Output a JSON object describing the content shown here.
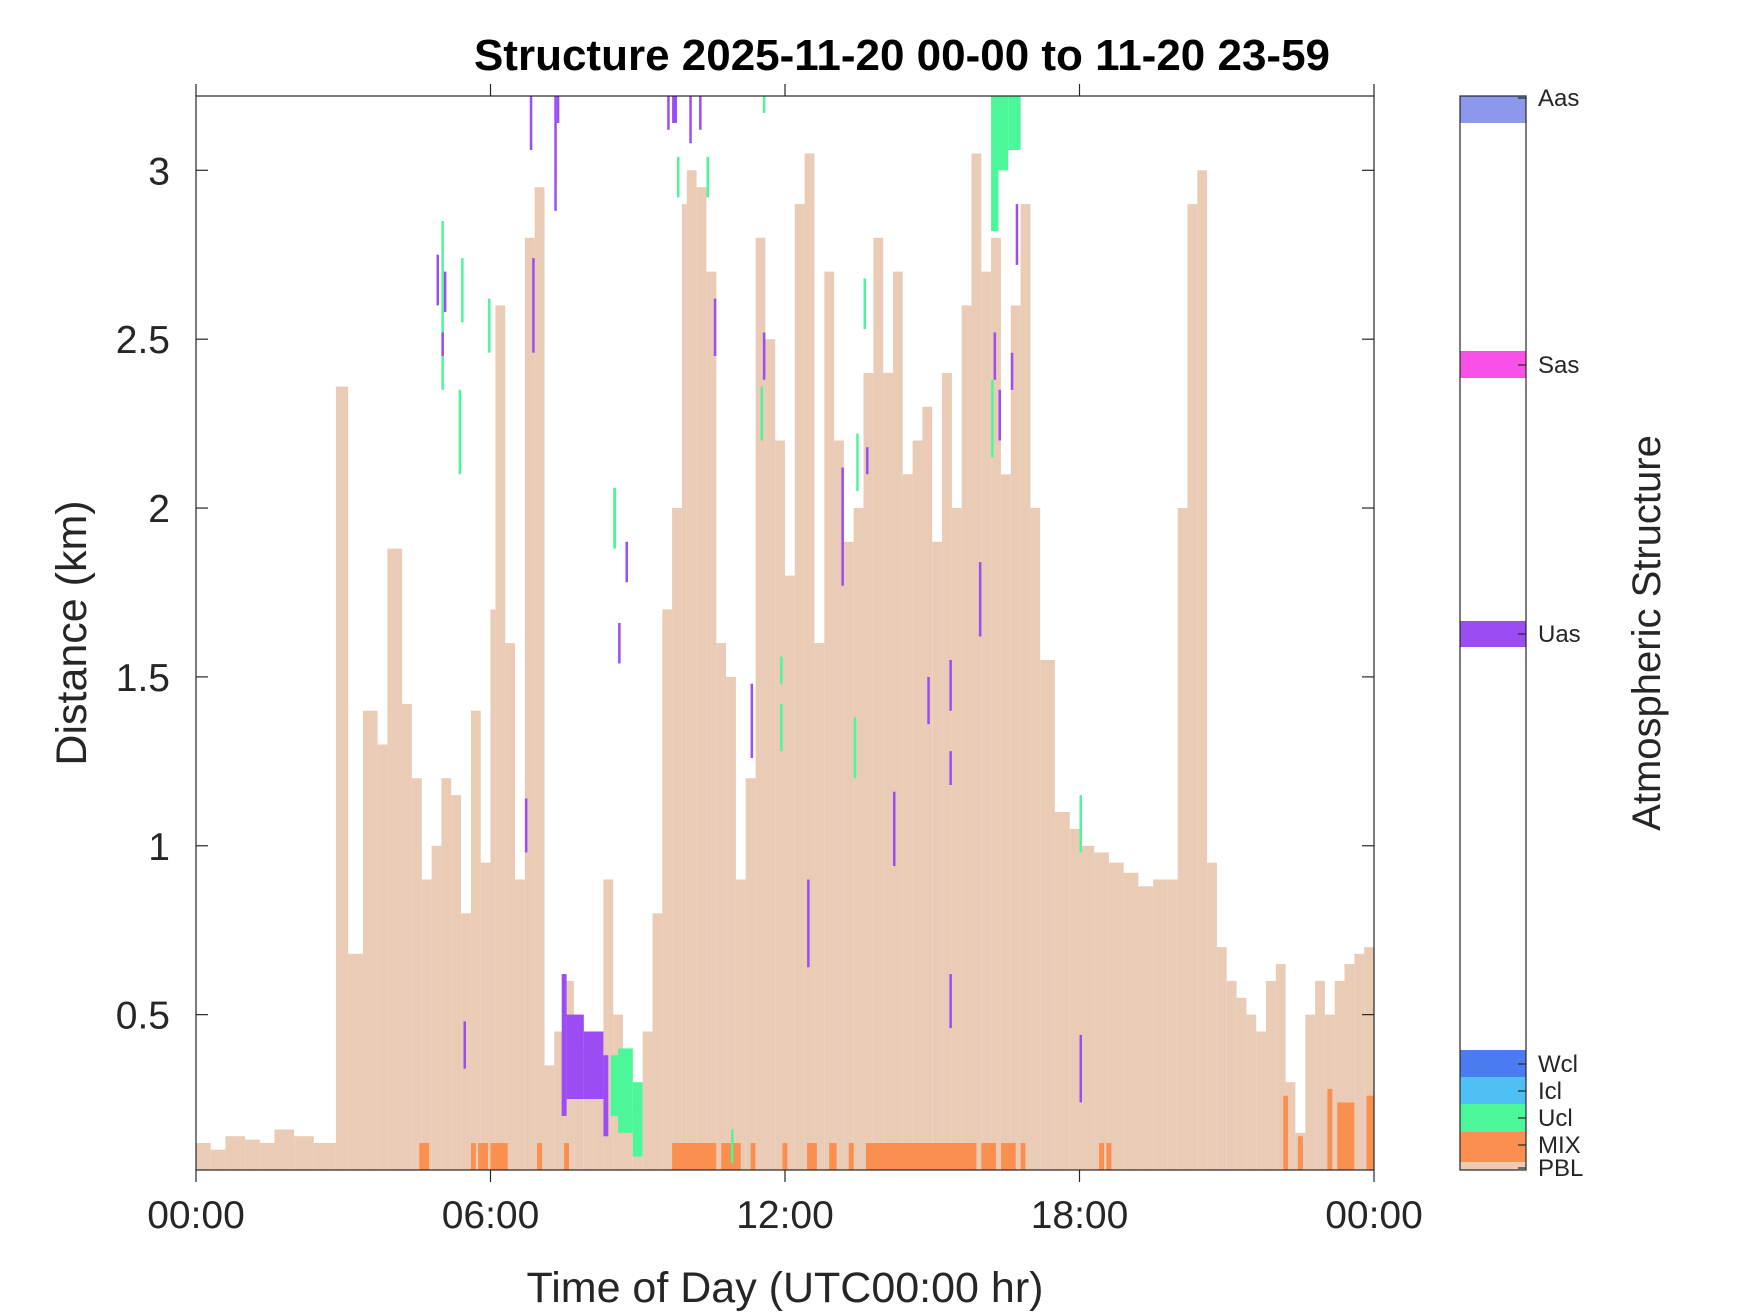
{
  "chart_data": {
    "type": "heatmap",
    "title": "Structure 2025-11-20 00-00 to 11-20 23-59",
    "xlabel": "Time of Day (UTC00:00 hr)",
    "ylabel": "Distance (km)",
    "xlim": [
      0,
      24
    ],
    "ylim": [
      0.04,
      3.22
    ],
    "x_unit": "hours",
    "x_ticks": [
      0,
      6,
      12,
      18,
      24
    ],
    "x_tick_labels": [
      "00:00",
      "06:00",
      "12:00",
      "18:00",
      "00:00"
    ],
    "y_ticks": [
      0.5,
      1,
      1.5,
      2,
      2.5,
      3
    ],
    "y_tick_labels": [
      "0.5",
      "1",
      "1.5",
      "2",
      "2.5",
      "3"
    ],
    "grid": false,
    "colorbar": {
      "title": "Atmospheric Structure",
      "classes": [
        {
          "label": "PBL",
          "color": "#EACBB5"
        },
        {
          "label": "MIX",
          "color": "#FA8F50"
        },
        {
          "label": "Ucl",
          "color": "#4CF79A"
        },
        {
          "label": "Icl",
          "color": "#4FC0F5"
        },
        {
          "label": "Wcl",
          "color": "#4A7BF2"
        },
        {
          "label": "Uas",
          "color": "#9B4CF2"
        },
        {
          "label": "Sas",
          "color": "#F950E8"
        },
        {
          "label": "Aas",
          "color": "#8C98EC"
        }
      ]
    },
    "pbl_height_km": {
      "x_hours": [
        0.0,
        0.3,
        0.6,
        1.0,
        1.3,
        1.6,
        2.0,
        2.4,
        2.75,
        2.85,
        3.1,
        3.4,
        3.7,
        3.9,
        4.2,
        4.4,
        4.6,
        4.8,
        5.0,
        5.2,
        5.4,
        5.6,
        5.8,
        6.0,
        6.1,
        6.3,
        6.5,
        6.7,
        6.9,
        7.1,
        7.3,
        7.5,
        7.7,
        7.9,
        8.1,
        8.3,
        8.5,
        8.7,
        8.9,
        9.1,
        9.3,
        9.5,
        9.7,
        9.9,
        10.0,
        10.2,
        10.4,
        10.6,
        10.8,
        11.0,
        11.2,
        11.4,
        11.6,
        11.8,
        12.0,
        12.2,
        12.4,
        12.6,
        12.8,
        13.0,
        13.2,
        13.4,
        13.6,
        13.8,
        14.0,
        14.2,
        14.4,
        14.6,
        14.8,
        15.0,
        15.2,
        15.4,
        15.6,
        15.8,
        16.0,
        16.2,
        16.4,
        16.6,
        16.8,
        17.0,
        17.2,
        17.5,
        17.8,
        18.0,
        18.3,
        18.6,
        18.9,
        19.2,
        19.5,
        19.8,
        20.0,
        20.2,
        20.4,
        20.6,
        20.8,
        21.0,
        21.2,
        21.4,
        21.6,
        21.8,
        22.0,
        22.2,
        22.4,
        22.6,
        22.8,
        23.0,
        23.2,
        23.4,
        23.6,
        23.8
      ],
      "values": [
        0.12,
        0.1,
        0.14,
        0.13,
        0.12,
        0.16,
        0.14,
        0.12,
        0.12,
        2.36,
        0.68,
        1.4,
        1.3,
        1.88,
        1.42,
        1.2,
        0.9,
        1.0,
        1.2,
        1.15,
        0.8,
        1.4,
        0.95,
        1.7,
        2.6,
        1.6,
        0.9,
        2.8,
        2.95,
        0.35,
        0.45,
        0.6,
        0.5,
        0.4,
        0.3,
        0.9,
        0.5,
        0.2,
        0.22,
        0.45,
        0.8,
        1.7,
        2.0,
        2.9,
        3.0,
        2.95,
        2.7,
        1.6,
        1.5,
        0.9,
        1.2,
        2.8,
        2.5,
        2.2,
        1.8,
        2.9,
        3.05,
        1.6,
        2.7,
        2.2,
        1.9,
        2.0,
        2.4,
        2.8,
        2.4,
        2.7,
        2.1,
        2.2,
        2.3,
        1.9,
        2.4,
        2.0,
        2.6,
        3.05,
        2.7,
        2.8,
        2.1,
        2.6,
        2.9,
        2.0,
        1.55,
        1.1,
        1.05,
        1.0,
        0.98,
        0.95,
        0.92,
        0.88,
        0.9,
        0.9,
        2.0,
        2.9,
        3.0,
        0.95,
        0.7,
        0.6,
        0.55,
        0.5,
        0.45,
        0.6,
        0.65,
        0.3,
        0.15,
        0.5,
        0.6,
        0.5,
        0.6,
        0.65,
        0.68,
        0.7
      ]
    },
    "segments": [
      {
        "class": "MIX",
        "t_start": 4.55,
        "t_end": 4.75,
        "z_low": 0.04,
        "z_high": 0.12
      },
      {
        "class": "MIX",
        "t_start": 5.6,
        "t_end": 5.7,
        "z_low": 0.04,
        "z_high": 0.12
      },
      {
        "class": "MIX",
        "t_start": 5.75,
        "t_end": 5.95,
        "z_low": 0.04,
        "z_high": 0.12
      },
      {
        "class": "MIX",
        "t_start": 6.0,
        "t_end": 6.35,
        "z_low": 0.04,
        "z_high": 0.12
      },
      {
        "class": "MIX",
        "t_start": 6.95,
        "t_end": 7.05,
        "z_low": 0.04,
        "z_high": 0.12
      },
      {
        "class": "MIX",
        "t_start": 7.5,
        "t_end": 7.6,
        "z_low": 0.04,
        "z_high": 0.12
      },
      {
        "class": "MIX",
        "t_start": 9.7,
        "t_end": 10.6,
        "z_low": 0.04,
        "z_high": 0.12
      },
      {
        "class": "MIX",
        "t_start": 10.7,
        "t_end": 11.1,
        "z_low": 0.04,
        "z_high": 0.12
      },
      {
        "class": "MIX",
        "t_start": 11.3,
        "t_end": 11.4,
        "z_low": 0.04,
        "z_high": 0.12
      },
      {
        "class": "MIX",
        "t_start": 11.95,
        "t_end": 12.05,
        "z_low": 0.04,
        "z_high": 0.12
      },
      {
        "class": "MIX",
        "t_start": 12.45,
        "t_end": 12.65,
        "z_low": 0.04,
        "z_high": 0.12
      },
      {
        "class": "MIX",
        "t_start": 12.9,
        "t_end": 13.05,
        "z_low": 0.04,
        "z_high": 0.12
      },
      {
        "class": "MIX",
        "t_start": 13.3,
        "t_end": 13.4,
        "z_low": 0.04,
        "z_high": 0.12
      },
      {
        "class": "MIX",
        "t_start": 13.65,
        "t_end": 15.9,
        "z_low": 0.04,
        "z_high": 0.12
      },
      {
        "class": "MIX",
        "t_start": 16.0,
        "t_end": 16.3,
        "z_low": 0.04,
        "z_high": 0.12
      },
      {
        "class": "MIX",
        "t_start": 16.4,
        "t_end": 16.7,
        "z_low": 0.04,
        "z_high": 0.12
      },
      {
        "class": "MIX",
        "t_start": 16.8,
        "t_end": 16.9,
        "z_low": 0.04,
        "z_high": 0.12
      },
      {
        "class": "MIX",
        "t_start": 18.4,
        "t_end": 18.5,
        "z_low": 0.04,
        "z_high": 0.12
      },
      {
        "class": "MIX",
        "t_start": 18.55,
        "t_end": 18.65,
        "z_low": 0.04,
        "z_high": 0.12
      },
      {
        "class": "MIX",
        "t_start": 22.15,
        "t_end": 22.25,
        "z_low": 0.04,
        "z_high": 0.26
      },
      {
        "class": "MIX",
        "t_start": 22.45,
        "t_end": 22.55,
        "z_low": 0.04,
        "z_high": 0.14
      },
      {
        "class": "MIX",
        "t_start": 23.05,
        "t_end": 23.15,
        "z_low": 0.04,
        "z_high": 0.28
      },
      {
        "class": "MIX",
        "t_start": 23.25,
        "t_end": 23.6,
        "z_low": 0.04,
        "z_high": 0.24
      },
      {
        "class": "MIX",
        "t_start": 23.85,
        "t_end": 24.0,
        "z_low": 0.04,
        "z_high": 0.26
      },
      {
        "class": "Ucl",
        "t_start": 5.0,
        "t_end": 5.05,
        "z_low": 2.35,
        "z_high": 2.85
      },
      {
        "class": "Ucl",
        "t_start": 5.35,
        "t_end": 5.4,
        "z_low": 2.1,
        "z_high": 2.35
      },
      {
        "class": "Ucl",
        "t_start": 5.4,
        "t_end": 5.45,
        "z_low": 2.55,
        "z_high": 2.74
      },
      {
        "class": "Ucl",
        "t_start": 5.95,
        "t_end": 6.0,
        "z_low": 2.46,
        "z_high": 2.62
      },
      {
        "class": "Ucl",
        "t_start": 8.5,
        "t_end": 8.56,
        "z_low": 1.88,
        "z_high": 2.06
      },
      {
        "class": "Ucl",
        "t_start": 8.45,
        "t_end": 8.6,
        "z_low": 0.2,
        "z_high": 0.38
      },
      {
        "class": "Ucl",
        "t_start": 8.6,
        "t_end": 8.9,
        "z_low": 0.15,
        "z_high": 0.4
      },
      {
        "class": "Ucl",
        "t_start": 8.9,
        "t_end": 9.1,
        "z_low": 0.08,
        "z_high": 0.3
      },
      {
        "class": "Ucl",
        "t_start": 9.8,
        "t_end": 9.84,
        "z_low": 2.92,
        "z_high": 3.04
      },
      {
        "class": "Ucl",
        "t_start": 10.4,
        "t_end": 10.45,
        "z_low": 2.92,
        "z_high": 3.04
      },
      {
        "class": "Ucl",
        "t_start": 11.5,
        "t_end": 11.54,
        "z_low": 2.2,
        "z_high": 2.36
      },
      {
        "class": "Ucl",
        "t_start": 11.55,
        "t_end": 11.6,
        "z_low": 3.17,
        "z_high": 3.22
      },
      {
        "class": "Ucl",
        "t_start": 11.9,
        "t_end": 11.94,
        "z_low": 1.28,
        "z_high": 1.42
      },
      {
        "class": "Ucl",
        "t_start": 11.9,
        "t_end": 11.94,
        "z_low": 1.48,
        "z_high": 1.56
      },
      {
        "class": "Ucl",
        "t_start": 10.9,
        "t_end": 10.95,
        "z_low": 0.06,
        "z_high": 0.16
      },
      {
        "class": "Ucl",
        "t_start": 13.4,
        "t_end": 13.45,
        "z_low": 1.2,
        "z_high": 1.38
      },
      {
        "class": "Ucl",
        "t_start": 13.45,
        "t_end": 13.5,
        "z_low": 2.05,
        "z_high": 2.22
      },
      {
        "class": "Ucl",
        "t_start": 13.6,
        "t_end": 13.65,
        "z_low": 2.53,
        "z_high": 2.68
      },
      {
        "class": "Ucl",
        "t_start": 16.2,
        "t_end": 16.35,
        "z_low": 2.82,
        "z_high": 3.22
      },
      {
        "class": "Ucl",
        "t_start": 16.35,
        "t_end": 16.55,
        "z_low": 3.0,
        "z_high": 3.22
      },
      {
        "class": "Ucl",
        "t_start": 16.55,
        "t_end": 16.8,
        "z_low": 3.06,
        "z_high": 3.22
      },
      {
        "class": "Ucl",
        "t_start": 16.2,
        "t_end": 16.25,
        "z_low": 2.15,
        "z_high": 2.38
      },
      {
        "class": "Ucl",
        "t_start": 18.0,
        "t_end": 18.05,
        "z_low": 0.98,
        "z_high": 1.15
      },
      {
        "class": "Uas",
        "t_start": 4.9,
        "t_end": 4.95,
        "z_low": 2.6,
        "z_high": 2.75
      },
      {
        "class": "Uas",
        "t_start": 5.05,
        "t_end": 5.1,
        "z_low": 2.58,
        "z_high": 2.7
      },
      {
        "class": "Uas",
        "t_start": 5.0,
        "t_end": 5.04,
        "z_low": 2.45,
        "z_high": 2.52
      },
      {
        "class": "Uas",
        "t_start": 5.45,
        "t_end": 5.5,
        "z_low": 0.34,
        "z_high": 0.48
      },
      {
        "class": "Uas",
        "t_start": 6.8,
        "t_end": 6.85,
        "z_low": 3.06,
        "z_high": 3.22
      },
      {
        "class": "Uas",
        "t_start": 6.85,
        "t_end": 6.9,
        "z_low": 2.46,
        "z_high": 2.74
      },
      {
        "class": "Uas",
        "t_start": 6.7,
        "t_end": 6.75,
        "z_low": 0.98,
        "z_high": 1.14
      },
      {
        "class": "Uas",
        "t_start": 7.3,
        "t_end": 7.34,
        "z_low": 2.88,
        "z_high": 3.22
      },
      {
        "class": "Uas",
        "t_start": 7.35,
        "t_end": 7.4,
        "z_low": 3.14,
        "z_high": 3.22
      },
      {
        "class": "Uas",
        "t_start": 7.45,
        "t_end": 7.55,
        "z_low": 0.2,
        "z_high": 0.62
      },
      {
        "class": "Uas",
        "t_start": 7.55,
        "t_end": 7.9,
        "z_low": 0.25,
        "z_high": 0.5
      },
      {
        "class": "Uas",
        "t_start": 7.9,
        "t_end": 8.3,
        "z_low": 0.25,
        "z_high": 0.45
      },
      {
        "class": "Uas",
        "t_start": 8.3,
        "t_end": 8.4,
        "z_low": 0.14,
        "z_high": 0.38
      },
      {
        "class": "Uas",
        "t_start": 8.6,
        "t_end": 8.65,
        "z_low": 1.54,
        "z_high": 1.66
      },
      {
        "class": "Uas",
        "t_start": 8.75,
        "t_end": 8.8,
        "z_low": 1.78,
        "z_high": 1.9
      },
      {
        "class": "Uas",
        "t_start": 9.6,
        "t_end": 9.65,
        "z_low": 3.12,
        "z_high": 3.22
      },
      {
        "class": "Uas",
        "t_start": 9.7,
        "t_end": 9.8,
        "z_low": 3.14,
        "z_high": 3.22
      },
      {
        "class": "Uas",
        "t_start": 10.05,
        "t_end": 10.1,
        "z_low": 3.08,
        "z_high": 3.22
      },
      {
        "class": "Uas",
        "t_start": 10.25,
        "t_end": 10.3,
        "z_low": 3.12,
        "z_high": 3.22
      },
      {
        "class": "Uas",
        "t_start": 10.55,
        "t_end": 10.6,
        "z_low": 2.45,
        "z_high": 2.62
      },
      {
        "class": "Uas",
        "t_start": 11.3,
        "t_end": 11.35,
        "z_low": 1.26,
        "z_high": 1.48
      },
      {
        "class": "Uas",
        "t_start": 11.55,
        "t_end": 11.6,
        "z_low": 2.38,
        "z_high": 2.52
      },
      {
        "class": "Uas",
        "t_start": 12.45,
        "t_end": 12.5,
        "z_low": 0.64,
        "z_high": 0.9
      },
      {
        "class": "Uas",
        "t_start": 13.15,
        "t_end": 13.2,
        "z_low": 1.77,
        "z_high": 2.12
      },
      {
        "class": "Uas",
        "t_start": 13.65,
        "t_end": 13.7,
        "z_low": 2.1,
        "z_high": 2.18
      },
      {
        "class": "Uas",
        "t_start": 14.2,
        "t_end": 14.25,
        "z_low": 0.94,
        "z_high": 1.16
      },
      {
        "class": "Uas",
        "t_start": 14.9,
        "t_end": 14.95,
        "z_low": 1.36,
        "z_high": 1.5
      },
      {
        "class": "Uas",
        "t_start": 15.35,
        "t_end": 15.4,
        "z_low": 1.4,
        "z_high": 1.55
      },
      {
        "class": "Uas",
        "t_start": 15.35,
        "t_end": 15.4,
        "z_low": 1.18,
        "z_high": 1.28
      },
      {
        "class": "Uas",
        "t_start": 15.35,
        "t_end": 15.4,
        "z_low": 0.46,
        "z_high": 0.62
      },
      {
        "class": "Uas",
        "t_start": 15.95,
        "t_end": 16.0,
        "z_low": 1.62,
        "z_high": 1.84
      },
      {
        "class": "Uas",
        "t_start": 16.25,
        "t_end": 16.3,
        "z_low": 2.38,
        "z_high": 2.52
      },
      {
        "class": "Uas",
        "t_start": 16.35,
        "t_end": 16.4,
        "z_low": 2.2,
        "z_high": 2.35
      },
      {
        "class": "Uas",
        "t_start": 16.6,
        "t_end": 16.65,
        "z_low": 2.35,
        "z_high": 2.46
      },
      {
        "class": "Uas",
        "t_start": 16.7,
        "t_end": 16.75,
        "z_low": 2.72,
        "z_high": 2.9
      },
      {
        "class": "Uas",
        "t_start": 18.0,
        "t_end": 18.05,
        "z_low": 0.24,
        "z_high": 0.44
      }
    ]
  }
}
